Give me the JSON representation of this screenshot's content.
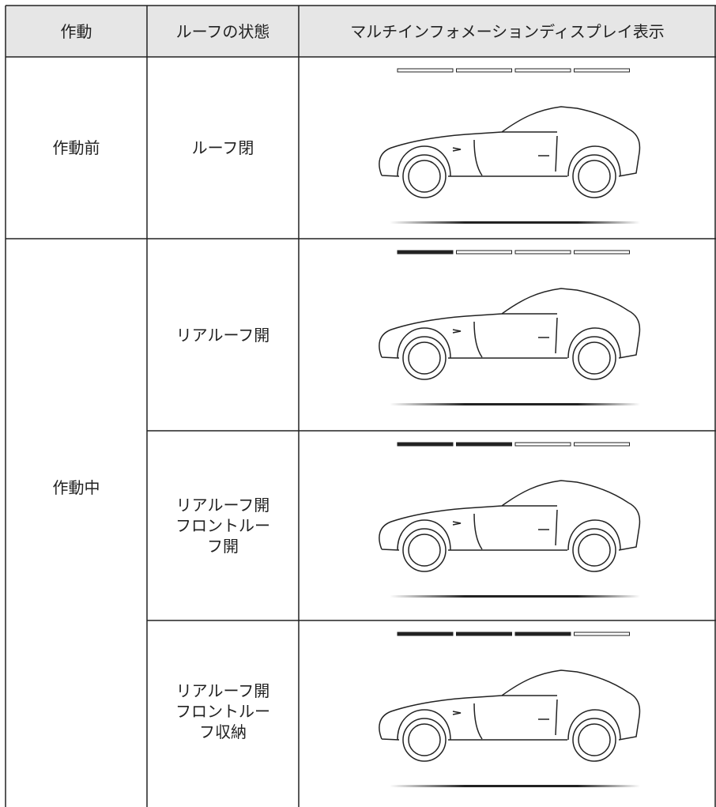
{
  "table": {
    "header": [
      "作動",
      "ルーフの状態",
      "マルチインフォメーションディスプレイ表示"
    ],
    "operations": [
      "作動前",
      "作動中"
    ],
    "states": [
      [
        "ルーフ閉"
      ],
      [
        "リアルーフ開"
      ],
      [
        "リアルーフ開",
        "フロントルー",
        "フ開"
      ],
      [
        "リアルーフ開",
        "フロントルー",
        "フ収納"
      ]
    ]
  }
}
